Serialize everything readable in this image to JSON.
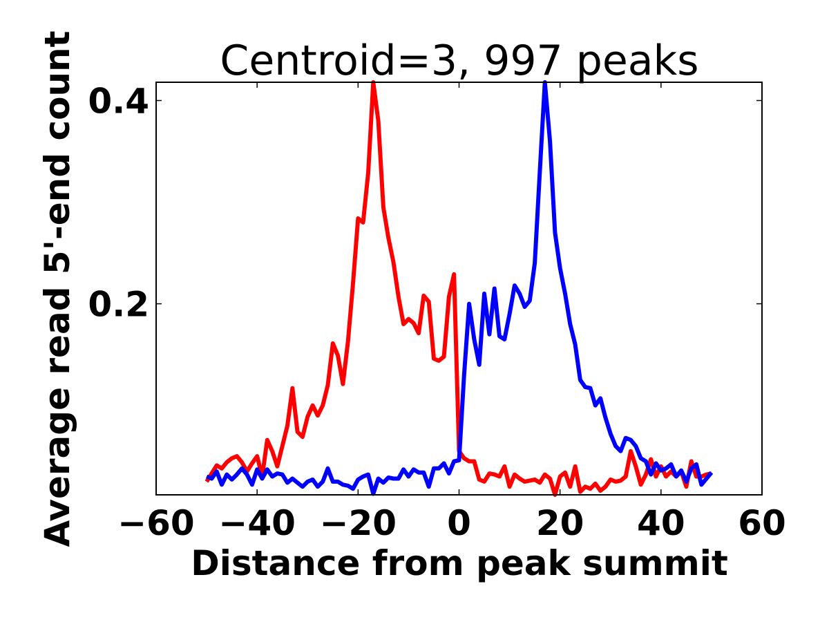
{
  "chart_data": {
    "type": "line",
    "title": "Centroid=3, 997 peaks",
    "xlabel": "Distance from peak summit",
    "ylabel": "Average read 5'-end count",
    "xlim": [
      -60,
      60
    ],
    "ylim": [
      0.012,
      0.418
    ],
    "xticks": [
      -60,
      -40,
      -20,
      0,
      20,
      40,
      60
    ],
    "xtick_labels": [
      "−60",
      "−40",
      "−20",
      "0",
      "20",
      "40",
      "60"
    ],
    "yticks": [
      0.2,
      0.4
    ],
    "ytick_labels": [
      "0.2",
      "0.4"
    ],
    "grid": false,
    "x_start": -50,
    "x_step": 1,
    "series": [
      {
        "color": "#ff0000",
        "values": [
          0.025,
          0.033,
          0.041,
          0.038,
          0.044,
          0.048,
          0.05,
          0.044,
          0.035,
          0.043,
          0.05,
          0.03,
          0.066,
          0.055,
          0.04,
          0.06,
          0.08,
          0.117,
          0.074,
          0.069,
          0.089,
          0.1,
          0.09,
          0.1,
          0.12,
          0.161,
          0.149,
          0.121,
          0.163,
          0.22,
          0.284,
          0.28,
          0.329,
          0.418,
          0.38,
          0.295,
          0.265,
          0.241,
          0.207,
          0.18,
          0.185,
          0.181,
          0.171,
          0.208,
          0.202,
          0.146,
          0.144,
          0.148,
          0.207,
          0.229,
          0.055,
          0.048,
          0.045,
          0.045,
          0.027,
          0.025,
          0.033,
          0.032,
          0.03,
          0.04,
          0.02,
          0.032,
          0.028,
          0.025,
          0.026,
          0.027,
          0.024,
          0.032,
          0.028,
          0.012,
          0.03,
          0.034,
          0.02,
          0.04,
          0.015,
          0.02,
          0.018,
          0.023,
          0.016,
          0.02,
          0.027,
          0.025,
          0.026,
          0.03,
          0.055,
          0.04,
          0.022,
          0.032,
          0.047,
          0.03,
          0.04,
          0.03,
          0.035,
          0.03,
          0.035,
          0.02,
          0.045,
          0.03,
          0.03,
          0.032,
          0.033
        ]
      },
      {
        "color": "#0000ff",
        "values": [
          0.03,
          0.028,
          0.035,
          0.022,
          0.032,
          0.027,
          0.032,
          0.038,
          0.032,
          0.022,
          0.037,
          0.028,
          0.037,
          0.03,
          0.033,
          0.032,
          0.024,
          0.028,
          0.024,
          0.02,
          0.025,
          0.027,
          0.02,
          0.025,
          0.038,
          0.025,
          0.025,
          0.022,
          0.021,
          0.018,
          0.027,
          0.03,
          0.032,
          0.013,
          0.028,
          0.024,
          0.029,
          0.028,
          0.028,
          0.037,
          0.03,
          0.037,
          0.034,
          0.034,
          0.02,
          0.038,
          0.038,
          0.043,
          0.033,
          0.045,
          0.046,
          0.13,
          0.2,
          0.165,
          0.14,
          0.21,
          0.17,
          0.215,
          0.168,
          0.165,
          0.19,
          0.218,
          0.21,
          0.197,
          0.203,
          0.24,
          0.33,
          0.418,
          0.36,
          0.27,
          0.235,
          0.21,
          0.18,
          0.16,
          0.125,
          0.118,
          0.117,
          0.1,
          0.107,
          0.088,
          0.072,
          0.06,
          0.055,
          0.068,
          0.066,
          0.06,
          0.048,
          0.045,
          0.032,
          0.043,
          0.036,
          0.038,
          0.042,
          0.03,
          0.036,
          0.025,
          0.038,
          0.042,
          0.022,
          0.028,
          0.034
        ]
      }
    ]
  }
}
